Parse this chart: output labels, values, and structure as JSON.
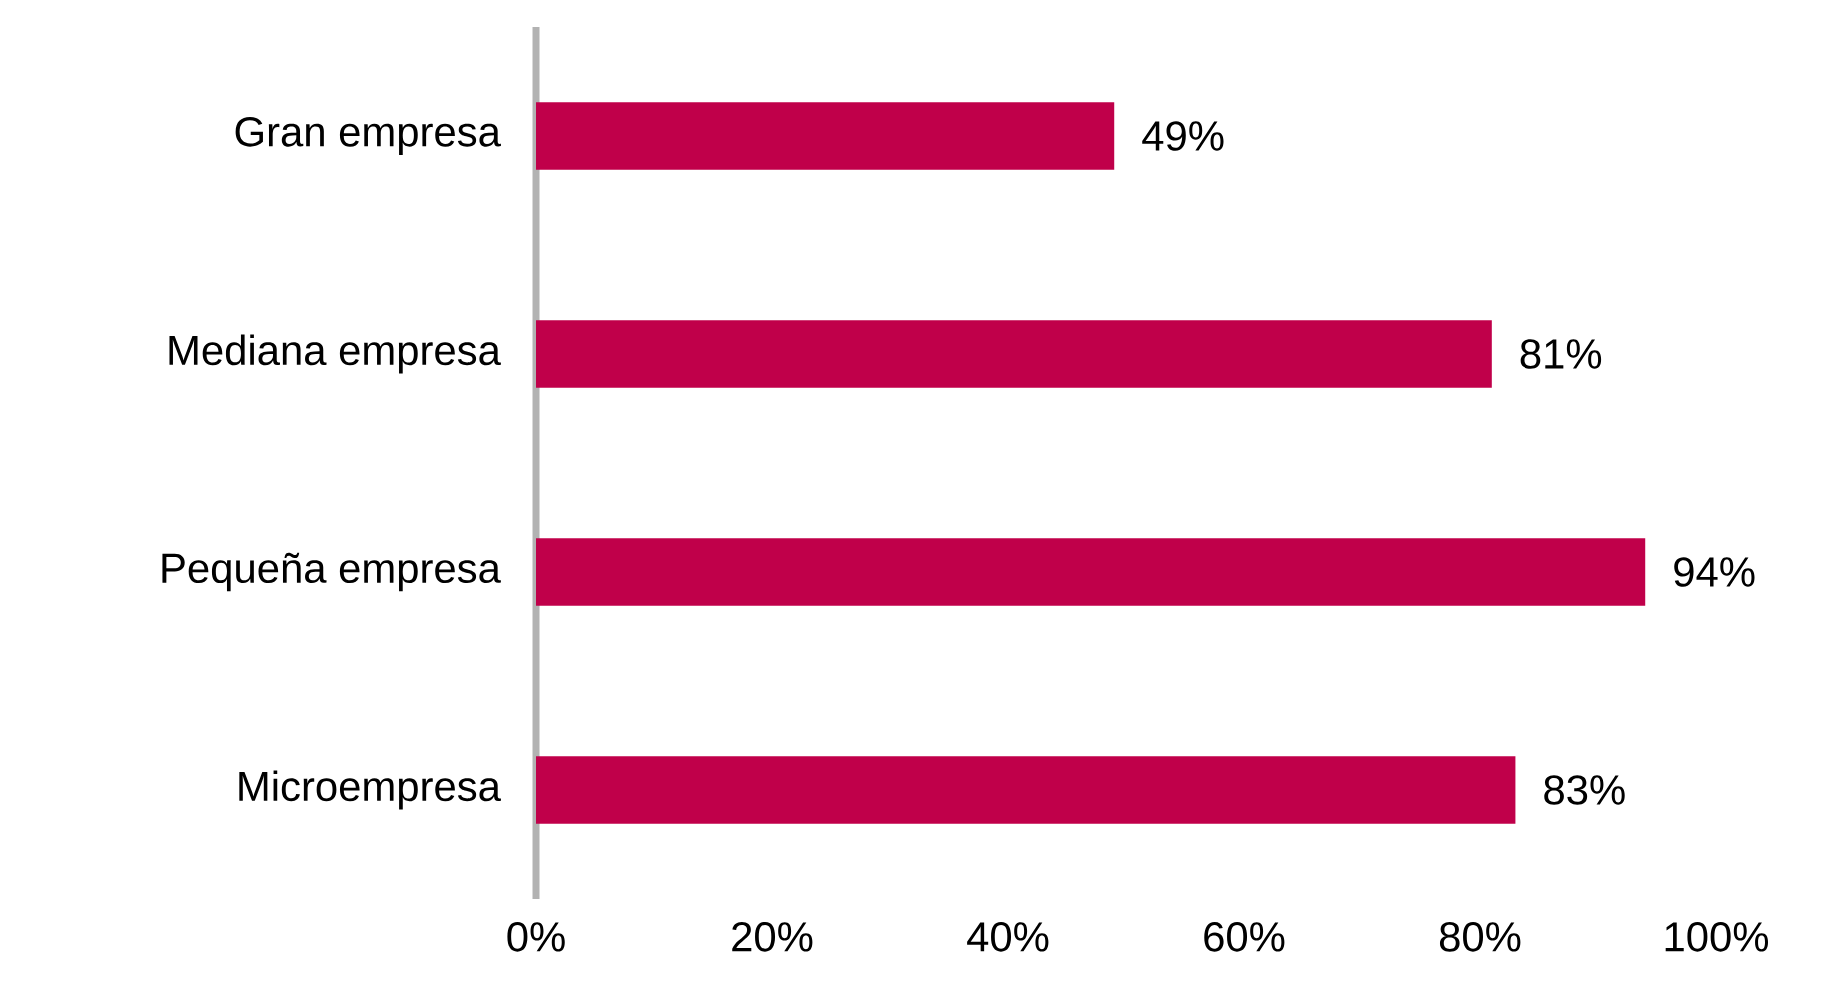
{
  "chart_data": {
    "type": "bar",
    "orientation": "horizontal",
    "categories": [
      "Gran empresa",
      "Mediana empresa",
      "Pequeña empresa",
      "Microempresa"
    ],
    "values": [
      49,
      81,
      94,
      83
    ],
    "value_labels": [
      "49%",
      "81%",
      "94%",
      "83%"
    ],
    "color": "#c0004a",
    "xlim": [
      0,
      100
    ],
    "xticks": [
      {
        "value": 0,
        "label": "0%"
      },
      {
        "value": 20,
        "label": "20%"
      },
      {
        "value": 40,
        "label": "40%"
      },
      {
        "value": 60,
        "label": "60%"
      },
      {
        "value": 80,
        "label": "80%"
      },
      {
        "value": 100,
        "label": "100%"
      }
    ],
    "grid": false
  }
}
